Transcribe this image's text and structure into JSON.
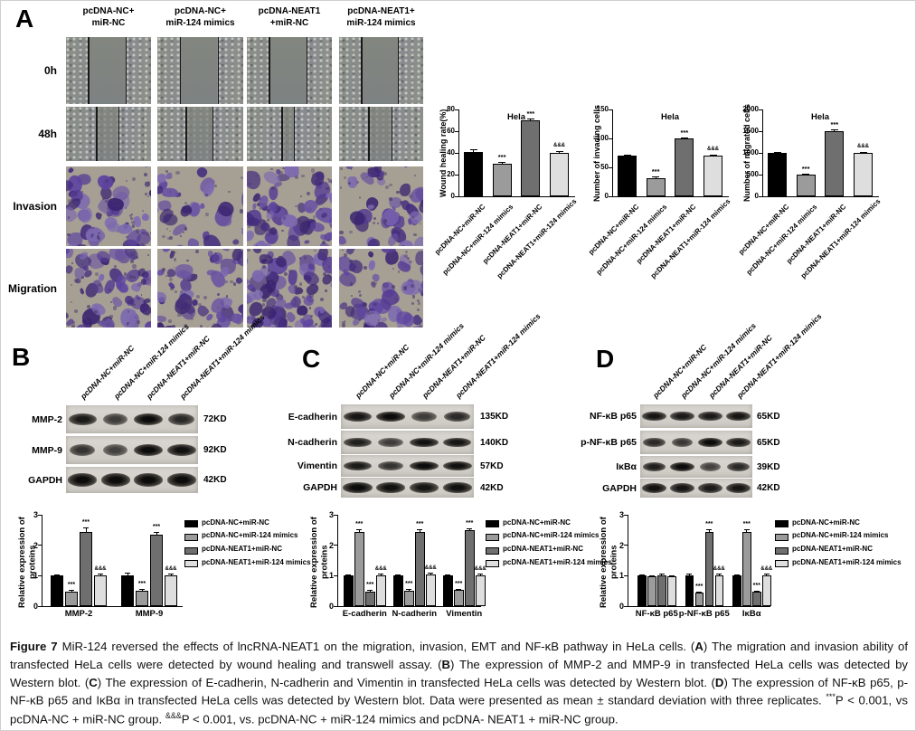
{
  "panels": {
    "a": "A",
    "b": "B",
    "c": "C",
    "d": "D"
  },
  "groups": [
    "pcDNA-NC+miR-NC",
    "pcDNA-NC+miR-124 mimics",
    "pcDNA-NEAT1+miR-NC",
    "pcDNA-NEAT1+miR-124 mimics"
  ],
  "group_colors": [
    "#000000",
    "#9b9b9b",
    "#6f6f6f",
    "#dedede"
  ],
  "panel_a": {
    "column_headers": [
      [
        "pcDNA-NC+",
        "miR-NC"
      ],
      [
        "pcDNA-NC+",
        "miR-124 mimics"
      ],
      [
        "pcDNA-NEAT1",
        "+miR-NC"
      ],
      [
        "pcDNA-NEAT1+",
        "miR-124 mimics"
      ]
    ],
    "row_labels": [
      "0h",
      "48h",
      "Invasion",
      "Migration"
    ]
  },
  "chart_data": [
    {
      "id": "wound-healing",
      "panel": "A",
      "type": "bar",
      "title": "Hela",
      "ylabel": "Wound healing rate(%)",
      "ylim": [
        0,
        80
      ],
      "yticks": [
        0,
        20,
        40,
        60,
        80
      ],
      "categories": [
        "pcDNA-NC+miR-NC",
        "pcDNA-NC+miR-124 mimics",
        "pcDNA-NEAT1+miR-NC",
        "pcDNA-NEAT1+miR-124 mimics"
      ],
      "values": [
        41,
        30,
        70,
        40
      ],
      "errors": [
        2,
        1.5,
        1.5,
        2
      ],
      "sig": [
        "",
        "***",
        "***",
        "&&&"
      ]
    },
    {
      "id": "invading-cells",
      "panel": "A",
      "type": "bar",
      "title": "Hela",
      "ylabel": "Number of invading cells",
      "ylim": [
        0,
        150
      ],
      "yticks": [
        0,
        50,
        100,
        150
      ],
      "categories": [
        "pcDNA-NC+miR-NC",
        "pcDNA-NC+miR-124 mimics",
        "pcDNA-NEAT1+miR-NC",
        "pcDNA-NEAT1+miR-124 mimics"
      ],
      "values": [
        70,
        32,
        100,
        70
      ],
      "errors": [
        2,
        2,
        2,
        2
      ],
      "sig": [
        "",
        "***",
        "***",
        "&&&"
      ]
    },
    {
      "id": "migrated-cells",
      "panel": "A",
      "type": "bar",
      "title": "Hela",
      "ylabel": "Number of migrated cells",
      "ylim": [
        0,
        2000
      ],
      "yticks": [
        0,
        500,
        1000,
        1500,
        2000
      ],
      "categories": [
        "pcDNA-NC+miR-NC",
        "pcDNA-NC+miR-124 mimics",
        "pcDNA-NEAT1+miR-NC",
        "pcDNA-NEAT1+miR-124 mimics"
      ],
      "values": [
        1000,
        500,
        1500,
        1000
      ],
      "errors": [
        25,
        20,
        40,
        30
      ],
      "sig": [
        "",
        "***",
        "***",
        "&&&"
      ]
    },
    {
      "id": "panel-b-expression",
      "panel": "B",
      "type": "grouped-bar",
      "ylabel": "Relative expression of proteins",
      "ylim": [
        0,
        3
      ],
      "yticks": [
        0,
        1,
        2,
        3
      ],
      "categories": [
        "MMP-2",
        "MMP-9"
      ],
      "series": [
        {
          "name": "pcDNA-NC+miR-NC",
          "values": [
            1.0,
            1.02
          ],
          "errors": [
            0.05,
            0.08
          ],
          "sig": [
            "",
            ""
          ]
        },
        {
          "name": "pcDNA-NC+miR-124 mimics",
          "values": [
            0.48,
            0.5
          ],
          "errors": [
            0.05,
            0.05
          ],
          "sig": [
            "***",
            "***"
          ]
        },
        {
          "name": "pcDNA-NEAT1+miR-NC",
          "values": [
            2.45,
            2.35
          ],
          "errors": [
            0.12,
            0.1
          ],
          "sig": [
            "***",
            "***"
          ]
        },
        {
          "name": "pcDNA-NEAT1+miR-124 mimics",
          "values": [
            1.0,
            1.0
          ],
          "errors": [
            0.07,
            0.06
          ],
          "sig": [
            "&&&",
            "&&&"
          ]
        }
      ]
    },
    {
      "id": "panel-c-expression",
      "panel": "C",
      "type": "grouped-bar",
      "ylabel": "Relative expression of proteins",
      "ylim": [
        0,
        3
      ],
      "yticks": [
        0,
        1,
        2,
        3
      ],
      "categories": [
        "E-cadherin",
        "N-cadherin",
        "Vimentin"
      ],
      "series": [
        {
          "name": "pcDNA-NC+miR-NC",
          "values": [
            1.0,
            1.0,
            1.0
          ],
          "errors": [
            0.05,
            0.05,
            0.05
          ],
          "sig": [
            "",
            "",
            ""
          ]
        },
        {
          "name": "pcDNA-NC+miR-124 mimics",
          "values": [
            2.45,
            0.5,
            0.52
          ],
          "errors": [
            0.06,
            0.05,
            0.05
          ],
          "sig": [
            "***",
            "***",
            "***"
          ]
        },
        {
          "name": "pcDNA-NEAT1+miR-NC",
          "values": [
            0.48,
            2.45,
            2.5
          ],
          "errors": [
            0.05,
            0.08,
            0.06
          ],
          "sig": [
            "***",
            "***",
            "***"
          ]
        },
        {
          "name": "pcDNA-NEAT1+miR-124 mimics",
          "values": [
            1.02,
            1.05,
            1.0
          ],
          "errors": [
            0.06,
            0.06,
            0.08
          ],
          "sig": [
            "&&&",
            "&&&",
            "&&&"
          ]
        }
      ]
    },
    {
      "id": "panel-d-expression",
      "panel": "D",
      "type": "grouped-bar",
      "ylabel": "Relative expression of proteins",
      "ylim": [
        0,
        3
      ],
      "yticks": [
        0,
        1,
        2,
        3
      ],
      "categories": [
        "NF-κB p65",
        "p-NF-κB p65",
        "IκBα"
      ],
      "series": [
        {
          "name": "pcDNA-NC+miR-NC",
          "values": [
            1.0,
            1.0,
            1.0
          ],
          "errors": [
            0.05,
            0.06,
            0.05
          ],
          "sig": [
            "",
            "",
            ""
          ]
        },
        {
          "name": "pcDNA-NC+miR-124 mimics",
          "values": [
            0.97,
            0.45,
            2.45
          ],
          "errors": [
            0.04,
            0.04,
            0.08
          ],
          "sig": [
            "",
            "***",
            "***"
          ]
        },
        {
          "name": "pcDNA-NEAT1+miR-NC",
          "values": [
            1.02,
            2.45,
            0.47
          ],
          "errors": [
            0.04,
            0.06,
            0.04
          ],
          "sig": [
            "",
            "***",
            "***"
          ]
        },
        {
          "name": "pcDNA-NEAT1+miR-124 mimics",
          "values": [
            0.97,
            1.02,
            1.02
          ],
          "errors": [
            0.04,
            0.05,
            0.05
          ],
          "sig": [
            "",
            "&&&",
            "&&&"
          ]
        }
      ]
    }
  ],
  "blots": [
    {
      "panel": "B",
      "rows": [
        {
          "label": "MMP-2",
          "kd": "72KD",
          "bands": [
            0.85,
            0.5,
            1,
            0.7
          ]
        },
        {
          "label": "MMP-9",
          "kd": "92KD",
          "bands": [
            0.6,
            0.45,
            1,
            0.95
          ]
        },
        {
          "label": "GAPDH",
          "kd": "42KD",
          "bands": [
            1,
            1,
            1,
            1
          ]
        }
      ]
    },
    {
      "panel": "C",
      "rows": [
        {
          "label": "E-cadherin",
          "kd": "135KD",
          "bands": [
            0.9,
            1,
            0.5,
            0.7
          ]
        },
        {
          "label": "N-cadherin",
          "kd": "140KD",
          "bands": [
            0.8,
            0.5,
            0.95,
            0.9
          ]
        },
        {
          "label": "Vimentin",
          "kd": "57KD",
          "bands": [
            0.85,
            0.6,
            1,
            0.95
          ]
        },
        {
          "label": "GAPDH",
          "kd": "42KD",
          "bands": [
            1,
            0.95,
            0.9,
            0.95
          ]
        }
      ]
    },
    {
      "panel": "D",
      "rows": [
        {
          "label": "NF-κB p65",
          "kd": "65KD",
          "bands": [
            0.9,
            0.85,
            0.85,
            0.9
          ]
        },
        {
          "label": "p-NF-κB p65",
          "kd": "65KD",
          "bands": [
            0.7,
            0.55,
            1,
            0.85
          ]
        },
        {
          "label": "IκBα",
          "kd": "39KD",
          "bands": [
            0.8,
            1,
            0.45,
            0.7
          ]
        },
        {
          "label": "GAPDH",
          "kd": "42KD",
          "bands": [
            0.95,
            0.9,
            0.85,
            0.9
          ]
        }
      ]
    }
  ],
  "caption": {
    "segments": [
      {
        "t": "Figure 7",
        "b": 1
      },
      {
        "t": " MiR-124 reversed the effects of lncRNA-NEAT1 on the migration, invasion, EMT and NF-κB pathway in HeLa cells. ("
      },
      {
        "t": "A",
        "b": 1
      },
      {
        "t": ") The migration and invasion ability of transfected HeLa cells were detected by wound healing and transwell assay. ("
      },
      {
        "t": "B",
        "b": 1
      },
      {
        "t": ") The expression of MMP-2 and MMP-9 in transfected HeLa cells was detected by Western blot. ("
      },
      {
        "t": "C",
        "b": 1
      },
      {
        "t": ") The expression of E-cadherin, N-cadherin and Vimentin in transfected HeLa cells was detected by Western blot. ("
      },
      {
        "t": "D",
        "b": 1
      },
      {
        "t": ") The expression of NF-κB p65, p-NF-κB p65 and IκBα in transfected HeLa cells was detected by Western blot. Data were presented as mean ± standard deviation with three replicates. "
      },
      {
        "t": "***",
        "sup": 1
      },
      {
        "t": "P < 0.001, vs pcDNA-NC + miR-NC group. "
      },
      {
        "t": "&&&",
        "sup": 1
      },
      {
        "t": "P < 0.001, vs. pcDNA-NC + miR-124 mimics and pcDNA- NEAT1 + miR-NC group."
      }
    ]
  }
}
